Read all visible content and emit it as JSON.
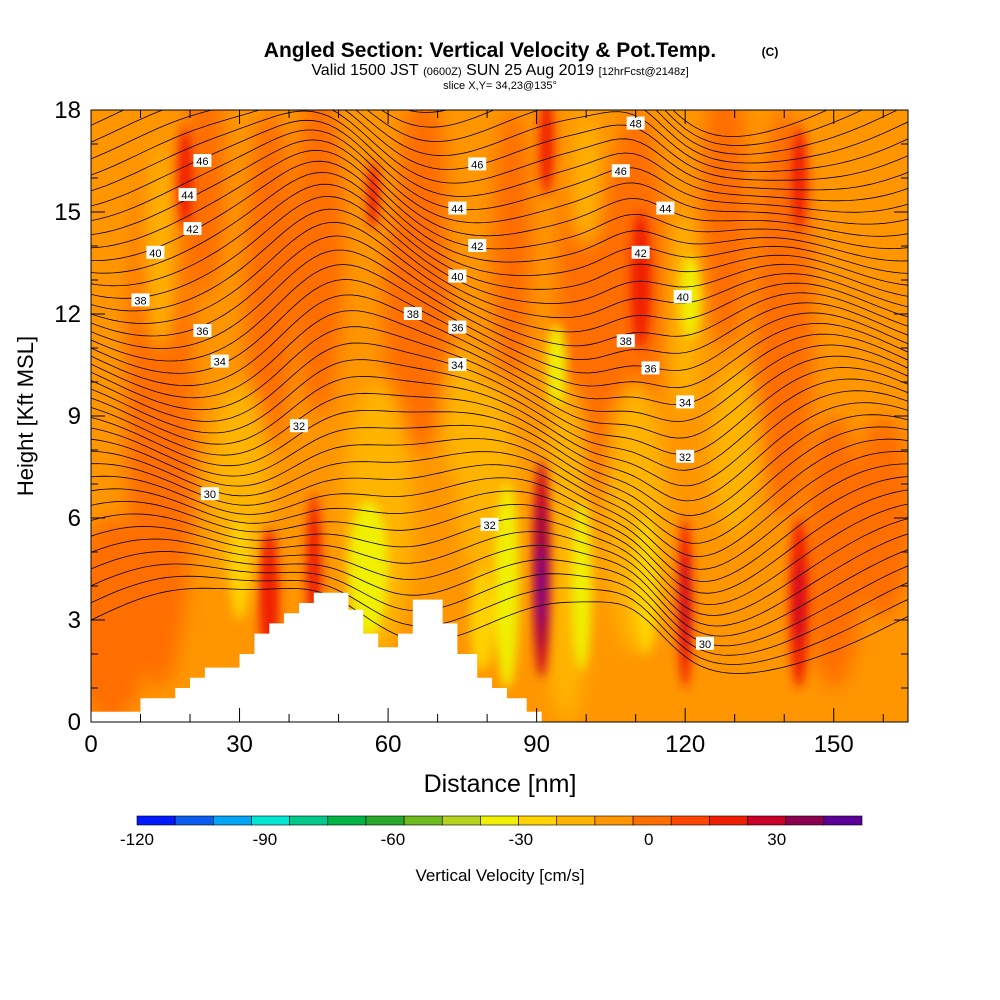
{
  "chart_data": {
    "type": "heatmap",
    "title": "Angled Section: Vertical Velocity & Pot.Temp.",
    "title_mark": "(C)",
    "subtitle": {
      "valid": "Valid 1500 JST",
      "utc": "(0600Z)",
      "date": "SUN 25 Aug 2019",
      "forecast": "[12hrFcst@2148z]"
    },
    "slice_label": "slice X,Y= 34,23@135°",
    "xlabel": "Distance [nm]",
    "ylabel": "Height [Kft MSL]",
    "xlim": [
      0,
      165
    ],
    "ylim": [
      0,
      18
    ],
    "x_ticks": [
      0,
      30,
      60,
      90,
      120,
      150
    ],
    "y_ticks": [
      0,
      3,
      6,
      9,
      12,
      15,
      18
    ],
    "colorbar": {
      "label": "Vertical Velocity [cm/s]",
      "range": [
        -120,
        50
      ],
      "step": 10,
      "tick_values": [
        -120,
        -90,
        -60,
        -30,
        0,
        30
      ],
      "tick_labels": [
        "-120",
        "-90",
        "-60",
        "-30",
        "0",
        "30"
      ],
      "colors": [
        "#0019ff",
        "#0a5cf0",
        "#00a5f5",
        "#00e6d2",
        "#00c98a",
        "#00b446",
        "#28a82a",
        "#6cba1e",
        "#b4d21e",
        "#f0f000",
        "#ffd200",
        "#ffb400",
        "#ff9600",
        "#ff6e00",
        "#ff4600",
        "#f01e00",
        "#c80028",
        "#8c0050",
        "#5a0096"
      ]
    },
    "theta_contour_labels": [
      {
        "value": "46",
        "x": 22.5,
        "y": 16.5
      },
      {
        "value": "44",
        "x": 19.5,
        "y": 15.5
      },
      {
        "value": "42",
        "x": 20.5,
        "y": 14.5
      },
      {
        "value": "40",
        "x": 13,
        "y": 13.8
      },
      {
        "value": "38",
        "x": 10,
        "y": 12.4
      },
      {
        "value": "36",
        "x": 22.5,
        "y": 11.5
      },
      {
        "value": "34",
        "x": 26,
        "y": 10.6
      },
      {
        "value": "32",
        "x": 42,
        "y": 8.7
      },
      {
        "value": "30",
        "x": 24,
        "y": 6.7
      },
      {
        "value": "46",
        "x": 78,
        "y": 16.4
      },
      {
        "value": "44",
        "x": 74,
        "y": 15.1
      },
      {
        "value": "42",
        "x": 78,
        "y": 14
      },
      {
        "value": "40",
        "x": 74,
        "y": 13.1
      },
      {
        "value": "38",
        "x": 65,
        "y": 12
      },
      {
        "value": "36",
        "x": 74,
        "y": 11.6
      },
      {
        "value": "34",
        "x": 74,
        "y": 10.5
      },
      {
        "value": "32",
        "x": 80.5,
        "y": 5.8
      },
      {
        "value": "48",
        "x": 110,
        "y": 17.6
      },
      {
        "value": "46",
        "x": 107,
        "y": 16.2
      },
      {
        "value": "44",
        "x": 116,
        "y": 15.1
      },
      {
        "value": "42",
        "x": 111,
        "y": 13.8
      },
      {
        "value": "40",
        "x": 119.5,
        "y": 12.5
      },
      {
        "value": "38",
        "x": 108,
        "y": 11.2
      },
      {
        "value": "36",
        "x": 113,
        "y": 10.4
      },
      {
        "value": "34",
        "x": 120,
        "y": 9.4
      },
      {
        "value": "32",
        "x": 120,
        "y": 7.8
      },
      {
        "value": "30",
        "x": 124,
        "y": 2.3
      }
    ],
    "terrain_profile": [
      [
        0,
        0.3
      ],
      [
        10,
        0.3
      ],
      [
        10,
        0.7
      ],
      [
        17,
        0.7
      ],
      [
        17,
        1.0
      ],
      [
        20,
        1.0
      ],
      [
        20,
        1.3
      ],
      [
        23,
        1.3
      ],
      [
        23,
        1.6
      ],
      [
        30,
        1.6
      ],
      [
        30,
        2.0
      ],
      [
        33,
        2.0
      ],
      [
        33,
        2.6
      ],
      [
        36,
        2.6
      ],
      [
        36,
        2.9
      ],
      [
        39,
        2.9
      ],
      [
        39,
        3.2
      ],
      [
        42,
        3.2
      ],
      [
        42,
        3.5
      ],
      [
        45,
        3.5
      ],
      [
        45,
        3.8
      ],
      [
        52,
        3.8
      ],
      [
        52,
        3.3
      ],
      [
        55,
        3.3
      ],
      [
        55,
        2.6
      ],
      [
        58,
        2.6
      ],
      [
        58,
        2.2
      ],
      [
        62,
        2.2
      ],
      [
        62,
        2.6
      ],
      [
        65,
        2.6
      ],
      [
        65,
        3.6
      ],
      [
        71,
        3.6
      ],
      [
        71,
        2.9
      ],
      [
        74,
        2.9
      ],
      [
        74,
        2.0
      ],
      [
        78,
        2.0
      ],
      [
        78,
        1.3
      ],
      [
        81,
        1.3
      ],
      [
        81,
        1.0
      ],
      [
        84,
        1.0
      ],
      [
        84,
        0.7
      ],
      [
        88,
        0.7
      ],
      [
        88,
        0.3
      ],
      [
        91,
        0.3
      ],
      [
        91,
        0
      ],
      [
        165,
        0
      ]
    ]
  }
}
